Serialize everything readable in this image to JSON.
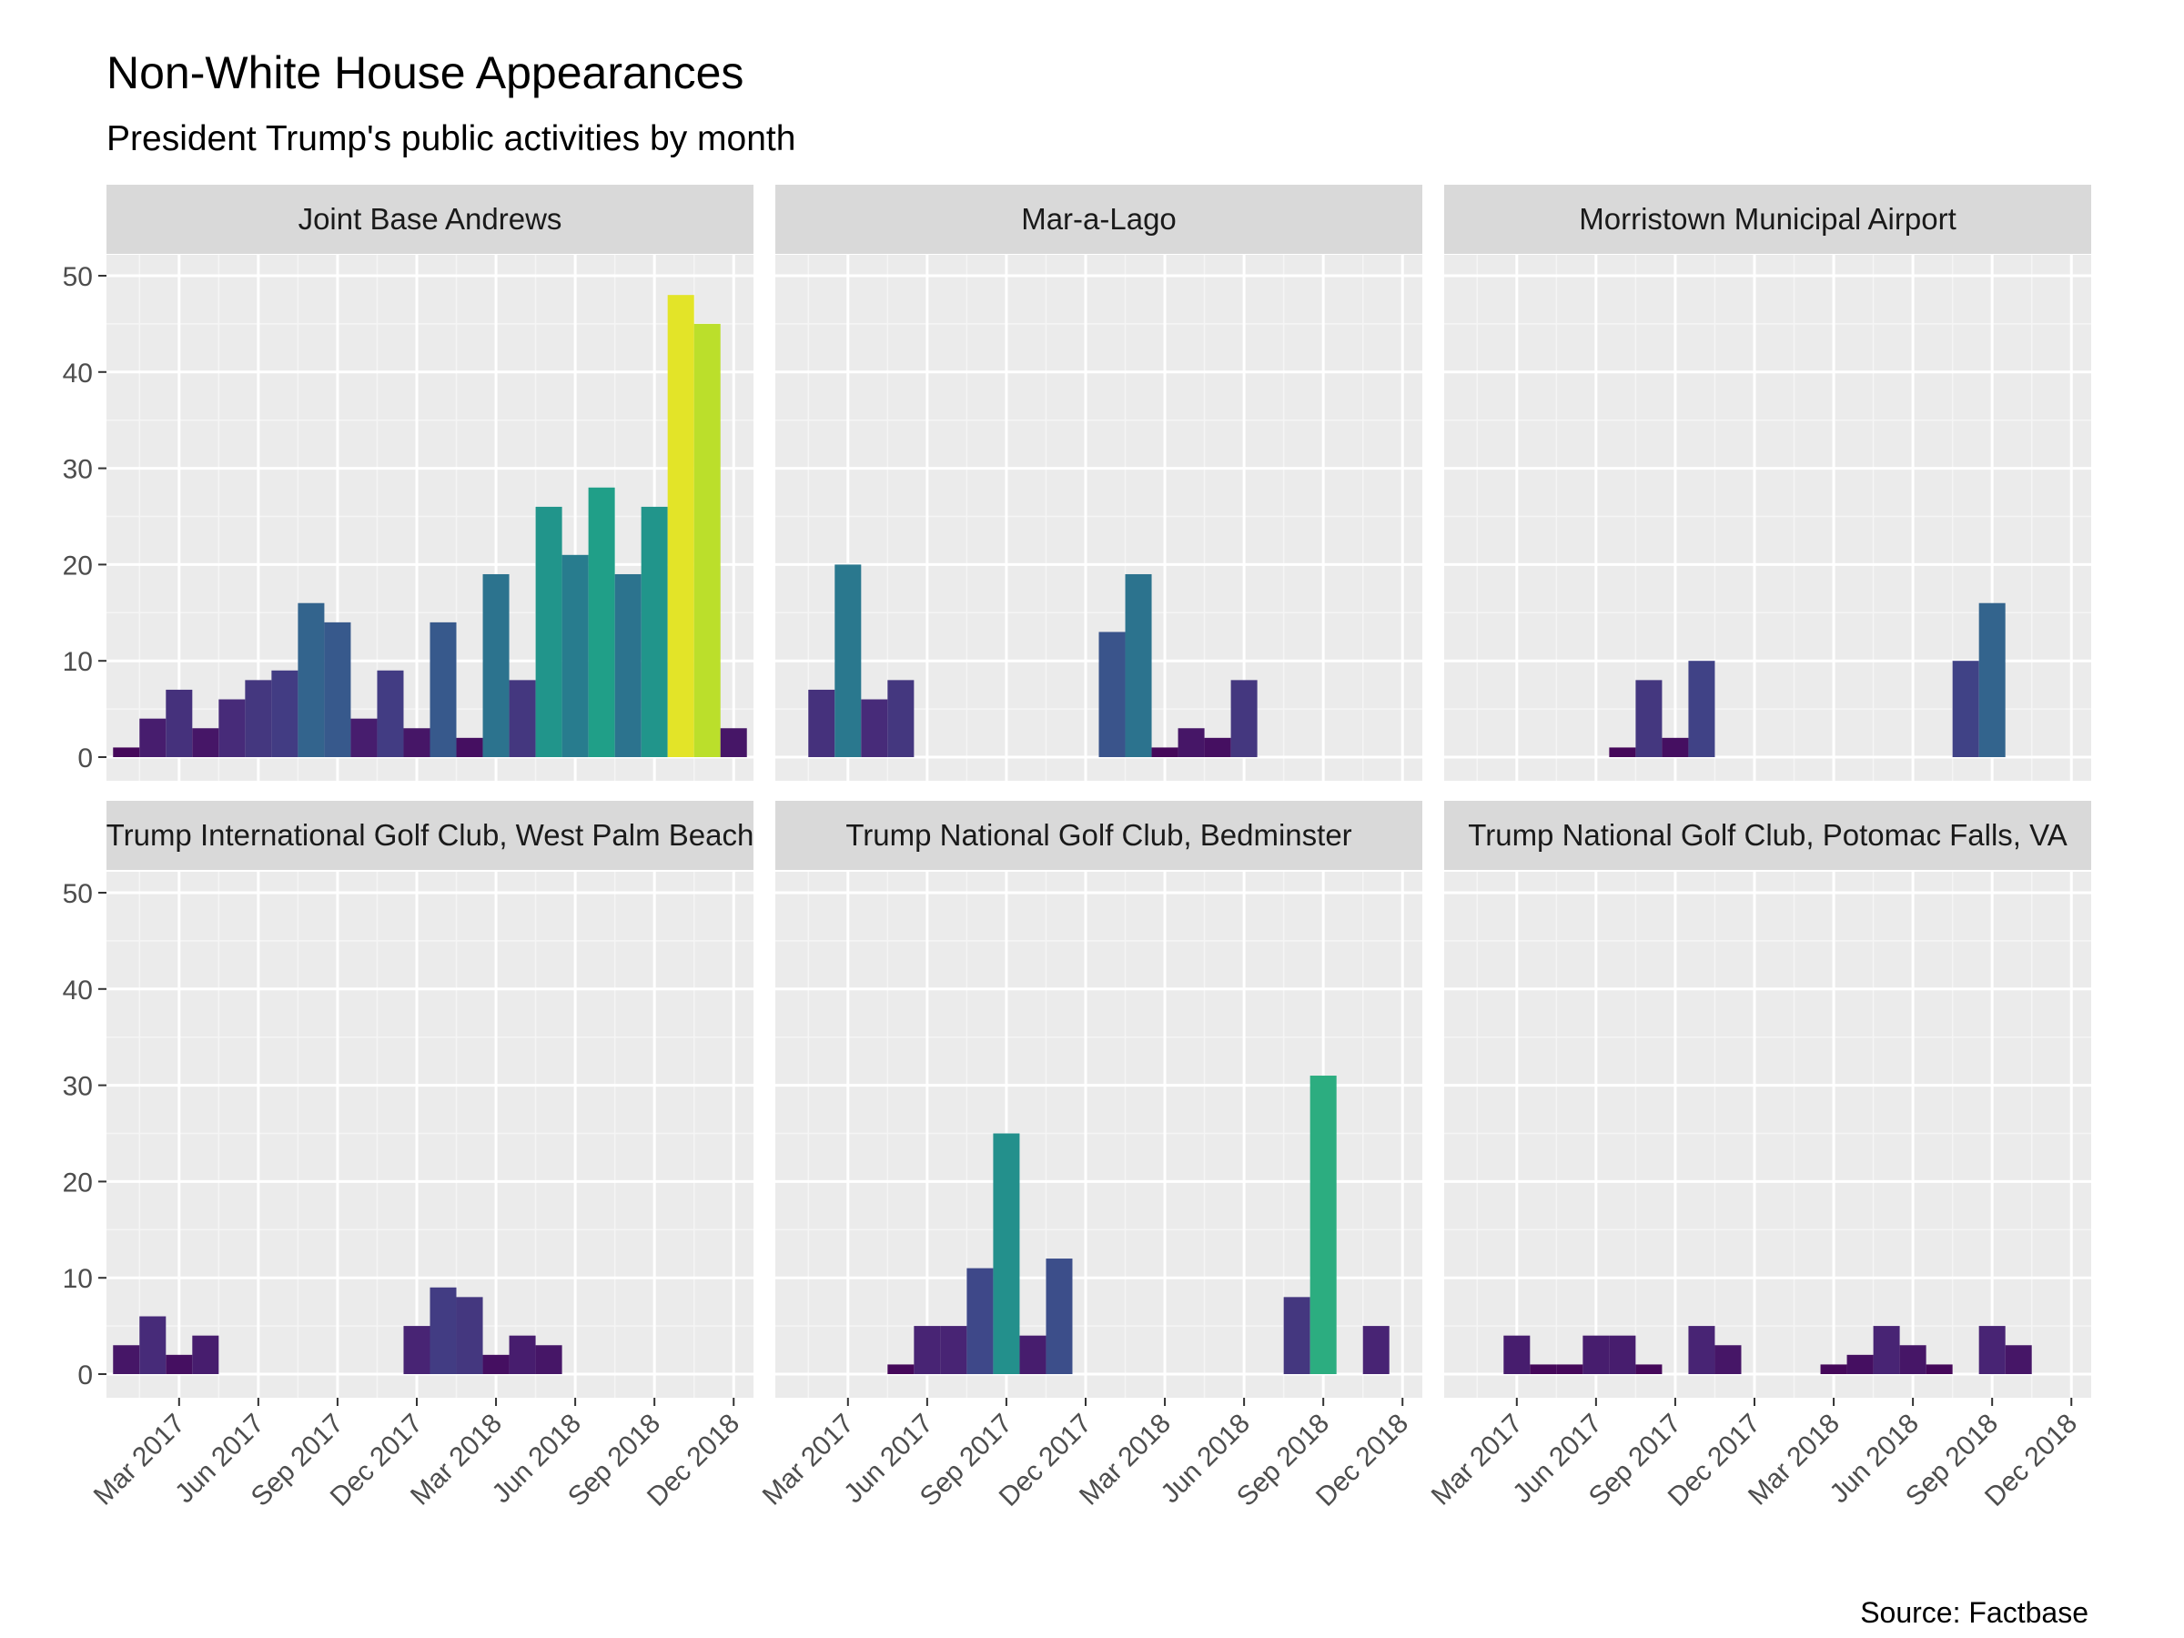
{
  "chart_data": {
    "type": "bar",
    "title": "Non-White House Appearances",
    "subtitle": "President Trump's public activities by month",
    "caption": "Source: Factbase",
    "facet": "location",
    "x_axis": {
      "type": "date",
      "tick_labels": [
        "Mar 2017",
        "Jun 2017",
        "Sep 2017",
        "Dec 2017",
        "Mar 2018",
        "Jun 2018",
        "Sep 2018",
        "Dec 2018"
      ]
    },
    "y_axis": {
      "ylim": [
        0,
        50
      ],
      "ticks": [
        0,
        10,
        20,
        30,
        40,
        50
      ]
    },
    "color_scale": {
      "name": "viridis",
      "domain": [
        0,
        50
      ],
      "note": "bar fill mapped to count"
    },
    "grid": true,
    "months": [
      "2017-01",
      "2017-02",
      "2017-03",
      "2017-04",
      "2017-05",
      "2017-06",
      "2017-07",
      "2017-08",
      "2017-09",
      "2017-10",
      "2017-11",
      "2017-12",
      "2018-01",
      "2018-02",
      "2018-03",
      "2018-04",
      "2018-05",
      "2018-06",
      "2018-07",
      "2018-08",
      "2018-09",
      "2018-10",
      "2018-11",
      "2018-12"
    ],
    "panels": [
      {
        "label": "Joint Base Andrews",
        "values": [
          1,
          4,
          7,
          3,
          6,
          8,
          9,
          16,
          14,
          4,
          9,
          3,
          14,
          2,
          19,
          8,
          26,
          21,
          28,
          19,
          26,
          48,
          45,
          3
        ]
      },
      {
        "label": "Mar-a-Lago",
        "values": [
          0,
          7,
          20,
          6,
          8,
          0,
          0,
          0,
          0,
          0,
          0,
          0,
          13,
          19,
          1,
          3,
          2,
          8,
          0,
          0,
          0,
          0,
          0,
          0
        ]
      },
      {
        "label": "Morristown Municipal Airport",
        "values": [
          0,
          0,
          0,
          0,
          0,
          0,
          1,
          8,
          2,
          10,
          0,
          0,
          0,
          0,
          0,
          0,
          0,
          0,
          0,
          10,
          16,
          0,
          0,
          0
        ]
      },
      {
        "label": "Trump International Golf Club, West Palm Beach",
        "values": [
          3,
          6,
          2,
          4,
          0,
          0,
          0,
          0,
          0,
          0,
          0,
          5,
          9,
          8,
          2,
          4,
          3,
          0,
          0,
          0,
          0,
          0,
          0,
          0
        ]
      },
      {
        "label": "Trump National Golf Club, Bedminster",
        "values": [
          0,
          0,
          0,
          0,
          1,
          5,
          5,
          11,
          25,
          4,
          12,
          0,
          0,
          0,
          0,
          0,
          0,
          0,
          0,
          8,
          31,
          0,
          5,
          0
        ]
      },
      {
        "label": "Trump National Golf Club, Potomac Falls, VA",
        "values": [
          0,
          0,
          4,
          1,
          1,
          4,
          4,
          1,
          0,
          5,
          3,
          0,
          0,
          0,
          1,
          2,
          5,
          3,
          1,
          0,
          5,
          3,
          0,
          0
        ]
      }
    ]
  }
}
